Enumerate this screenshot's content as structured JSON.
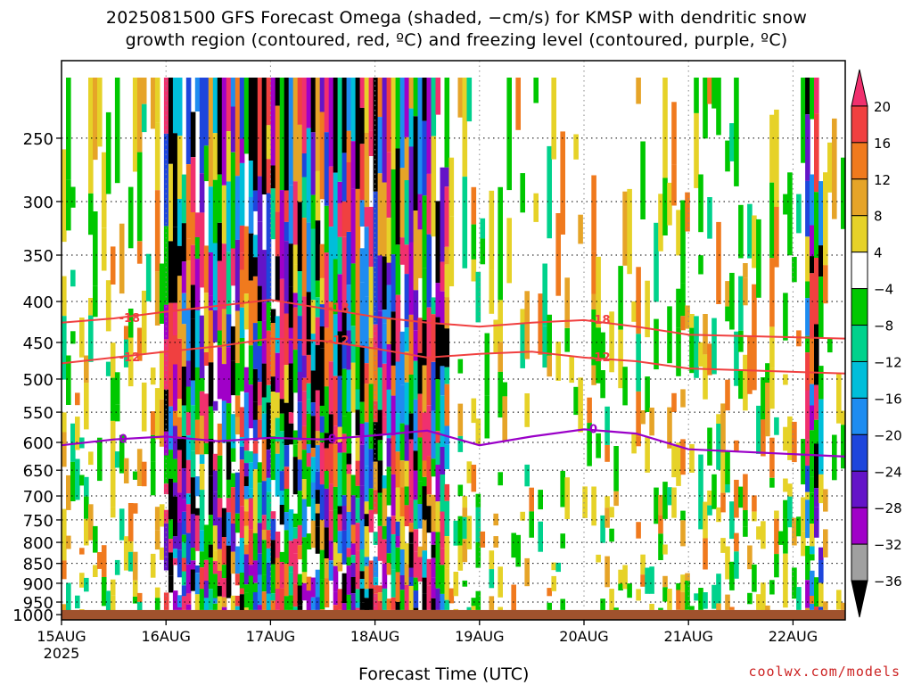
{
  "title": {
    "line1": "2025081500 GFS Forecast Omega (shaded, −cm/s) for KMSP with dendritic snow",
    "line2": "growth region (contoured, red, ºC) and freezing level (contoured, purple, ºC)"
  },
  "credit": "coolwx.com/models",
  "chart_data": {
    "type": "heatmap",
    "title": "2025081500 GFS Forecast Omega (shaded, −cm/s) for KMSP with dendritic snow growth region (contoured, red, ºC) and freezing level (contoured, purple, ºC)",
    "xlabel": "Forecast Time (UTC)",
    "ylabel": "",
    "x_ticks": [
      "15AUG",
      "16AUG",
      "17AUG",
      "18AUG",
      "19AUG",
      "20AUG",
      "21AUG",
      "22AUG"
    ],
    "x_year_label": "2025",
    "x_range_days": [
      0,
      7.5
    ],
    "y_ticks": [
      250,
      300,
      350,
      400,
      450,
      500,
      550,
      600,
      650,
      700,
      750,
      800,
      850,
      900,
      950,
      1000
    ],
    "y_range_hpa": [
      200,
      1000
    ],
    "y_scale": "log-pressure",
    "grid": true,
    "colorbar": {
      "labels": [
        "20",
        "16",
        "12",
        "8",
        "4",
        "−4",
        "−8",
        "−12",
        "−16",
        "−20",
        "−24",
        "−28",
        "−32",
        "−36"
      ],
      "levels": [
        20,
        16,
        12,
        8,
        4,
        -4,
        -8,
        -12,
        -16,
        -20,
        -24,
        -28,
        -32,
        -36
      ],
      "colors": [
        "#f0306e",
        "#f04040",
        "#f07a1e",
        "#e6a428",
        "#e6d228",
        "#ffffff",
        "#00c800",
        "#00d28c",
        "#00beda",
        "#1e8cf0",
        "#1e46dc",
        "#6414c8",
        "#a000c8",
        "#a0a0a0",
        "#000000"
      ]
    },
    "contours": {
      "dendritic_growth_red": [
        {
          "label": "-18",
          "pressure_hpa": [
            425,
            420,
            412,
            405,
            398,
            408,
            418,
            425,
            430,
            425,
            422,
            430,
            440,
            445
          ]
        },
        {
          "label": "-12",
          "pressure_hpa": [
            478,
            470,
            462,
            455,
            445,
            448,
            458,
            470,
            465,
            462,
            470,
            475,
            485,
            492
          ]
        }
      ],
      "freezing_level_purple": [
        {
          "label": "0",
          "pressure_hpa": [
            605,
            595,
            590,
            598,
            592,
            595,
            588,
            580,
            605,
            590,
            578,
            585,
            612,
            625
          ]
        }
      ],
      "time_days": [
        0,
        0.5,
        1,
        1.5,
        2,
        2.5,
        3,
        3.5,
        4,
        4.5,
        5,
        5.5,
        6,
        6.5
      ]
    },
    "ground_color": "#a0522d"
  }
}
